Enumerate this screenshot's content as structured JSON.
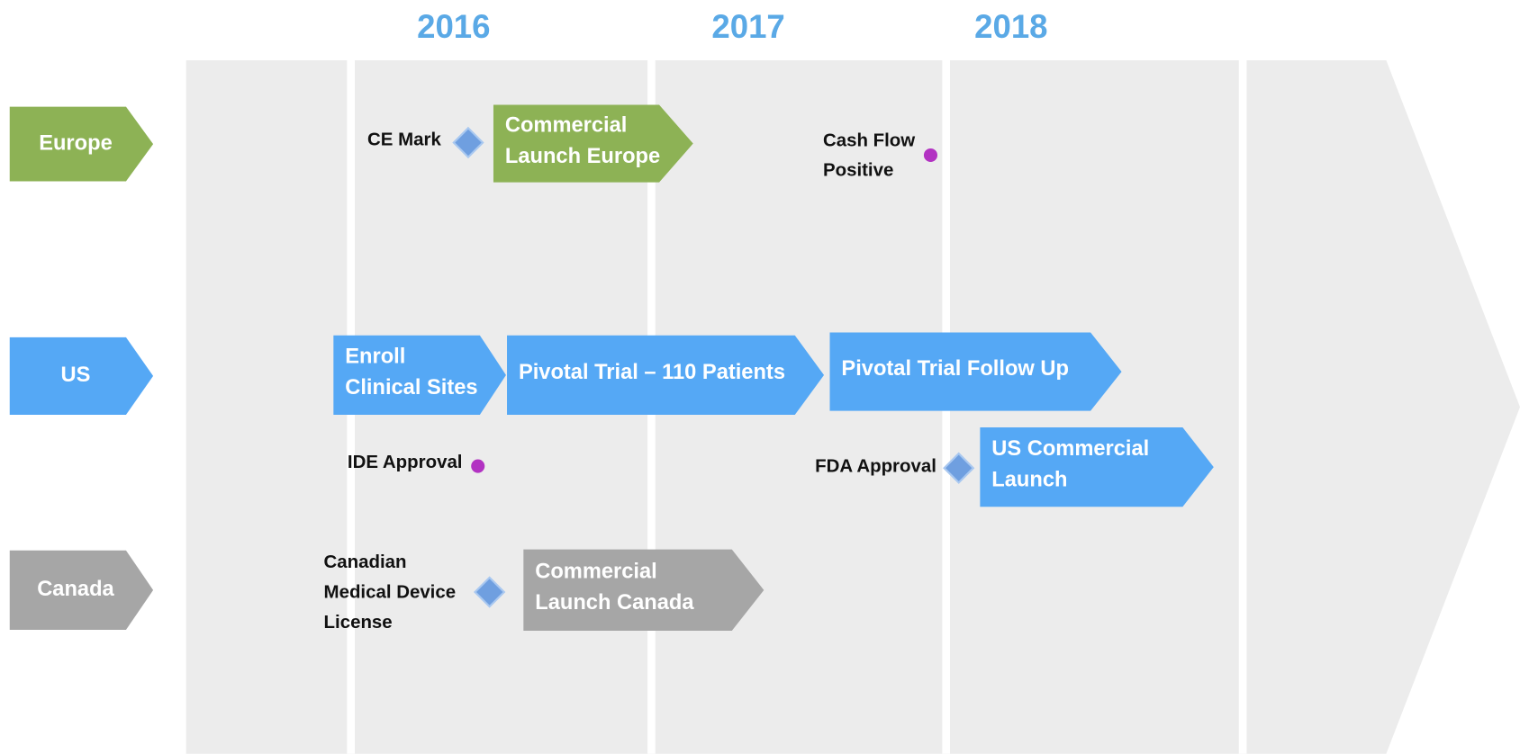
{
  "years": [
    "2016",
    "2017",
    "2018"
  ],
  "regions": [
    {
      "label": "Europe"
    },
    {
      "label": "US"
    },
    {
      "label": "Canada"
    }
  ],
  "phases": [
    {
      "lines": [
        "Commercial",
        "Launch Europe"
      ]
    },
    {
      "lines": [
        "Enroll",
        "Clinical Sites"
      ]
    },
    {
      "lines": [
        "Pivotal Trial – 110 Patients"
      ]
    },
    {
      "lines": [
        "Pivotal Trial Follow Up"
      ]
    },
    {
      "lines": [
        "US Commercial",
        "Launch"
      ]
    },
    {
      "lines": [
        "Commercial",
        "Launch Canada"
      ]
    }
  ],
  "milestones": [
    {
      "lines": [
        "CE Mark"
      ]
    },
    {
      "lines": [
        "Cash Flow",
        "Positive"
      ]
    },
    {
      "lines": [
        "IDE Approval"
      ]
    },
    {
      "lines": [
        "FDA Approval"
      ]
    },
    {
      "lines": [
        "Canadian",
        "Medical Device",
        "License"
      ]
    }
  ]
}
